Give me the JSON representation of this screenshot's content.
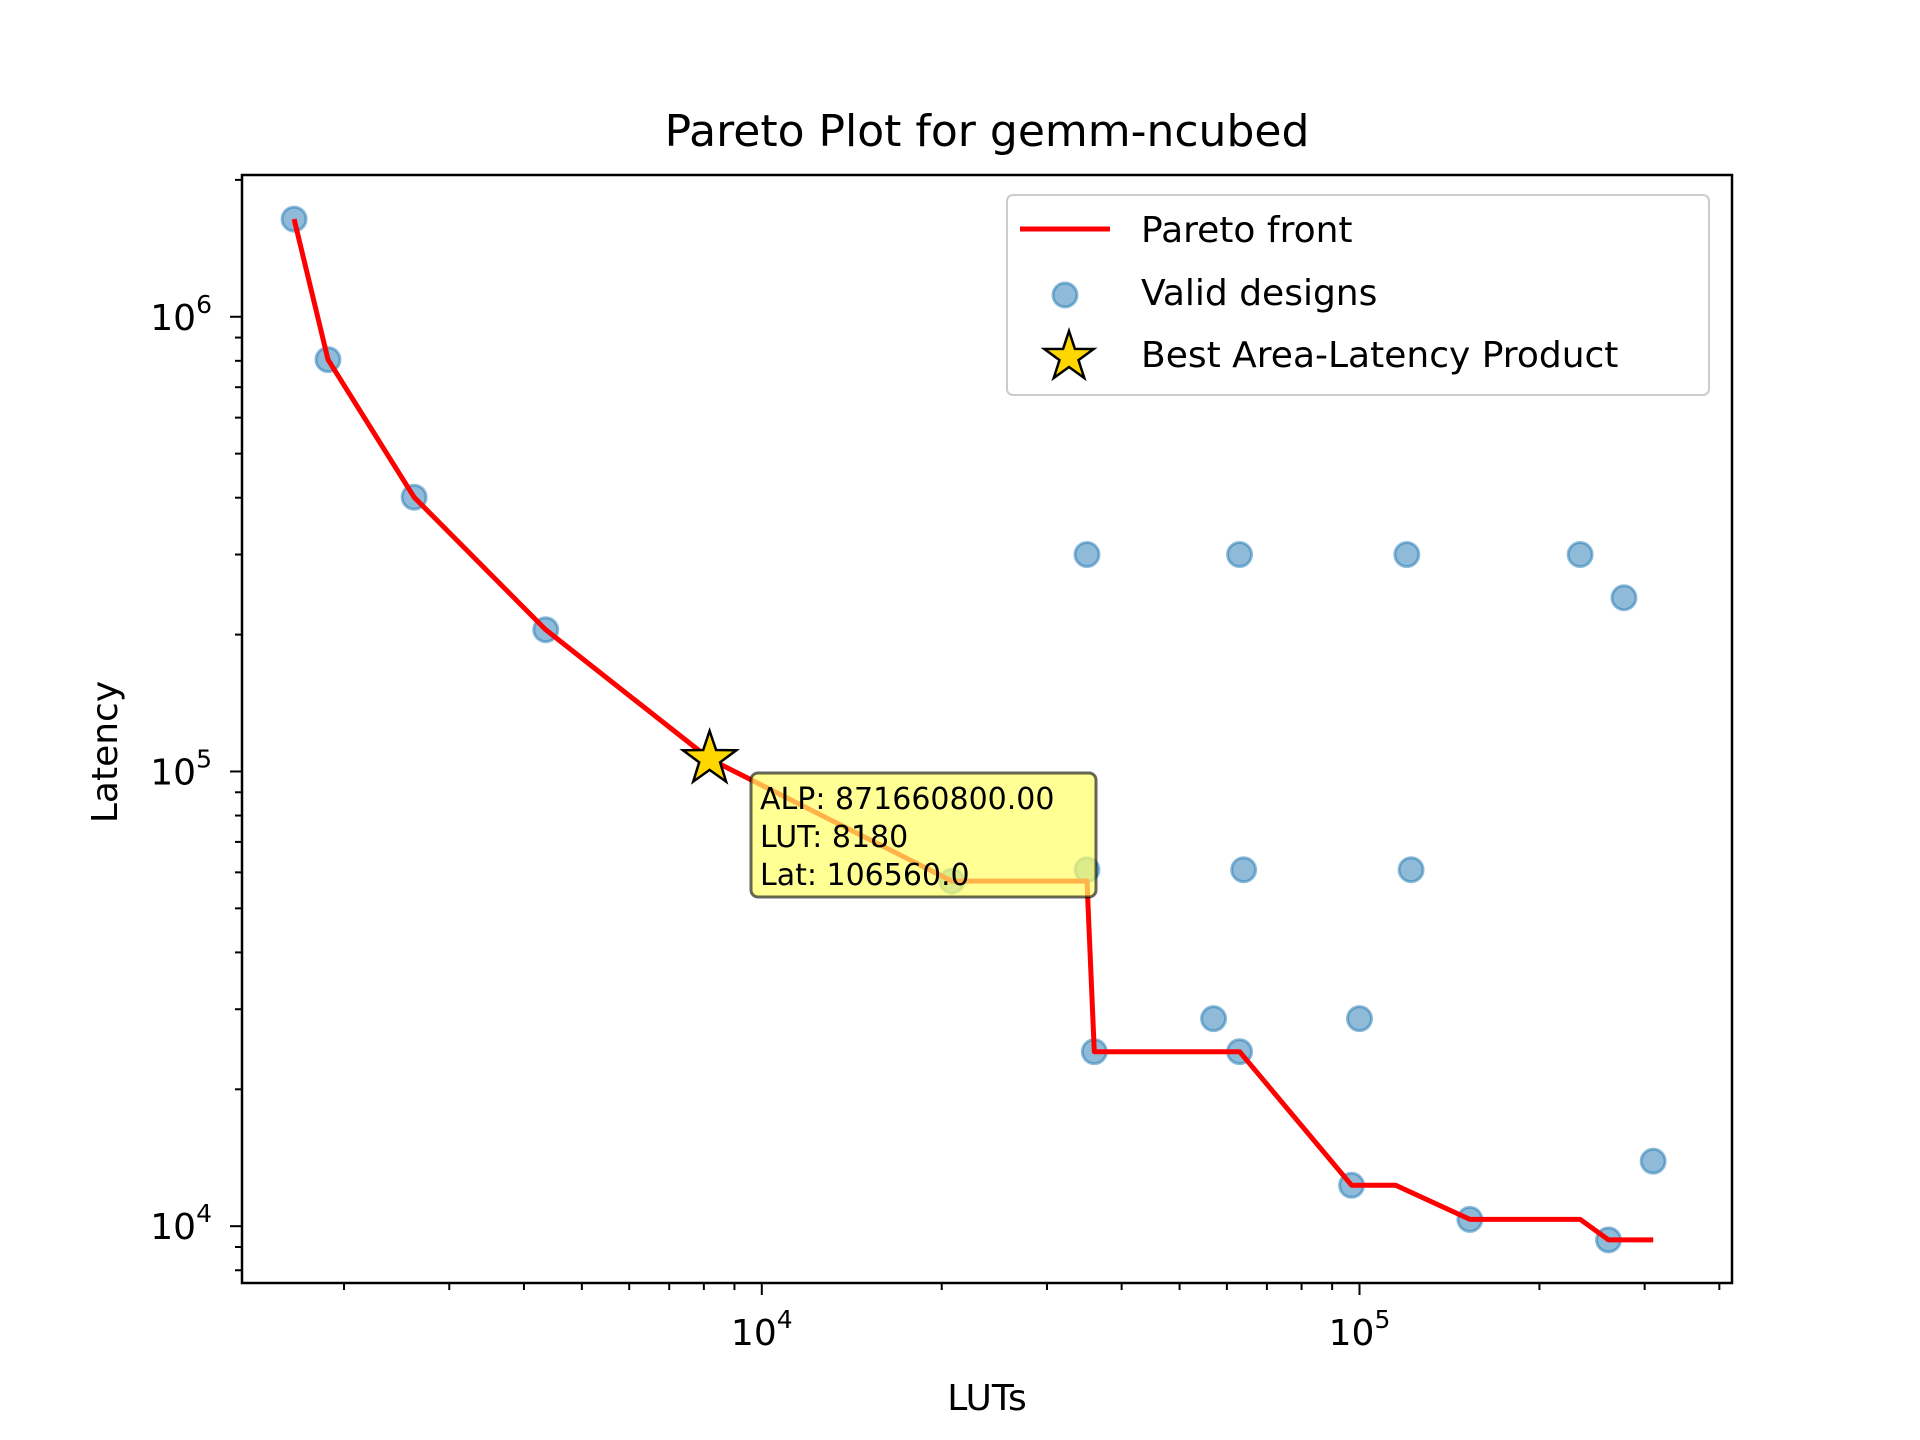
{
  "chart_data": {
    "type": "scatter",
    "title": "Pareto Plot for gemm-ncubed",
    "xlabel": "LUTs",
    "ylabel": "Latency",
    "xscale": "log",
    "yscale": "log",
    "xlim": [
      1350,
      420000
    ],
    "ylim": [
      7500,
      2050000
    ],
    "x_ticks": [
      {
        "value": 10000,
        "base": "10",
        "exp": "4"
      },
      {
        "value": 100000,
        "base": "10",
        "exp": "5"
      }
    ],
    "y_ticks": [
      {
        "value": 10000,
        "base": "10",
        "exp": "4"
      },
      {
        "value": 100000,
        "base": "10",
        "exp": "5"
      },
      {
        "value": 1000000,
        "base": "10",
        "exp": "6"
      }
    ],
    "legend": {
      "placement": "upper right",
      "entries": [
        "Pareto front",
        "Valid designs",
        "Best Area-Latency Product"
      ]
    },
    "colors": {
      "pareto": "#ff0000",
      "valid": "#1f77b4",
      "star": "#ffd700",
      "annotation_bg": "#ffff66"
    },
    "valid_designs": [
      {
        "x": 1650,
        "y": 1640000
      },
      {
        "x": 1880,
        "y": 805000
      },
      {
        "x": 2620,
        "y": 401000
      },
      {
        "x": 4350,
        "y": 205000
      },
      {
        "x": 20800,
        "y": 57400
      },
      {
        "x": 35000,
        "y": 60800
      },
      {
        "x": 35000,
        "y": 300000
      },
      {
        "x": 36000,
        "y": 24200
      },
      {
        "x": 57000,
        "y": 28600
      },
      {
        "x": 63000,
        "y": 300000
      },
      {
        "x": 63000,
        "y": 24200
      },
      {
        "x": 64000,
        "y": 60800
      },
      {
        "x": 97000,
        "y": 12300
      },
      {
        "x": 100000,
        "y": 28600
      },
      {
        "x": 120000,
        "y": 300000
      },
      {
        "x": 122000,
        "y": 60800
      },
      {
        "x": 153000,
        "y": 10350
      },
      {
        "x": 234000,
        "y": 300000
      },
      {
        "x": 261000,
        "y": 9330
      },
      {
        "x": 277000,
        "y": 241000
      },
      {
        "x": 310000,
        "y": 13900
      }
    ],
    "pareto_front": [
      {
        "x": 1650,
        "y": 1640000
      },
      {
        "x": 1880,
        "y": 805000
      },
      {
        "x": 2620,
        "y": 401000
      },
      {
        "x": 4350,
        "y": 205000
      },
      {
        "x": 8180,
        "y": 106560
      },
      {
        "x": 20800,
        "y": 57400
      },
      {
        "x": 35000,
        "y": 57400
      },
      {
        "x": 36000,
        "y": 24200
      },
      {
        "x": 63000,
        "y": 24200
      },
      {
        "x": 97000,
        "y": 12300
      },
      {
        "x": 115000,
        "y": 12300
      },
      {
        "x": 153000,
        "y": 10350
      },
      {
        "x": 234000,
        "y": 10350
      },
      {
        "x": 261000,
        "y": 9330
      },
      {
        "x": 310000,
        "y": 9330
      }
    ],
    "best": {
      "x": 8180,
      "y": 106560
    },
    "annotation": [
      "ALP: 871660800.00",
      "LUT: 8180",
      "Lat: 106560.0"
    ]
  }
}
